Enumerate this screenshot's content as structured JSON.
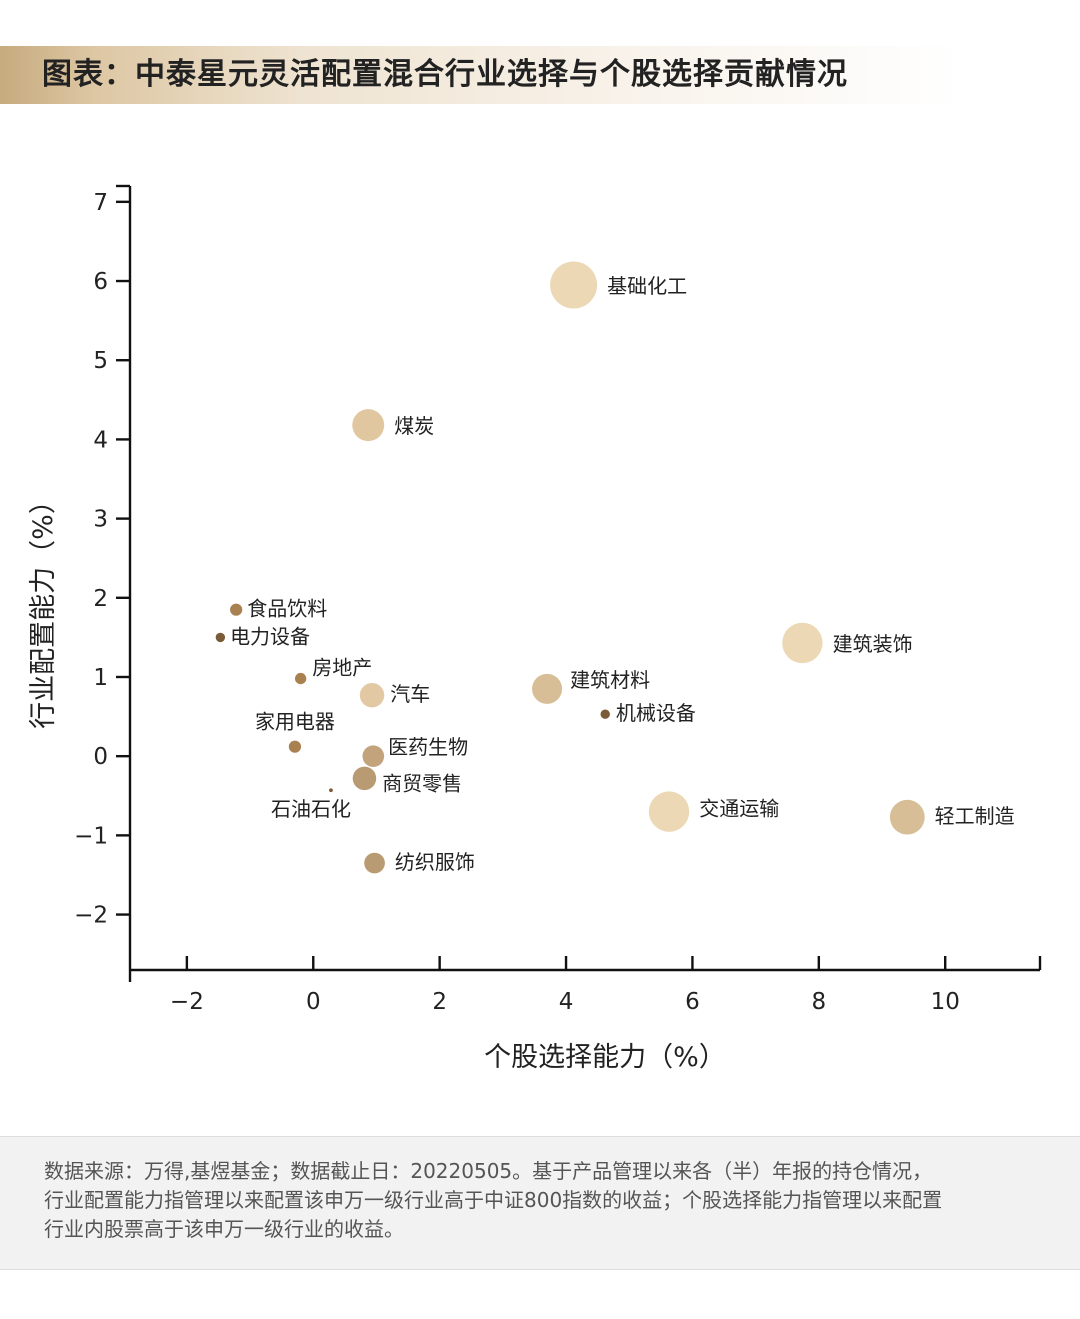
{
  "header": {
    "title": "图表：中泰星元灵活配置混合行业选择与个股选择贡献情况"
  },
  "chart_data": {
    "type": "scatter",
    "title": "图表：中泰星元灵活配置混合行业选择与个股选择贡献情况",
    "xlabel": "个股选择能力（%）",
    "ylabel": "行业配置能力（%）",
    "xlim": [
      -2.9,
      11.5
    ],
    "ylim": [
      -2.7,
      7.2
    ],
    "xticks": [
      -2,
      0,
      2,
      4,
      6,
      8,
      10
    ],
    "xtick_labels": [
      "−2",
      "0",
      "2",
      "4",
      "6",
      "8",
      "10"
    ],
    "yticks": [
      -2,
      -1,
      0,
      1,
      2,
      3,
      4,
      5,
      6,
      7
    ],
    "ytick_labels": [
      "−2",
      "−1",
      "0",
      "1",
      "2",
      "3",
      "4",
      "5",
      "6",
      "7"
    ],
    "grid": false,
    "points": [
      {
        "label": "基础化工",
        "x": 4.12,
        "y": 5.95,
        "size": 5,
        "color": "#ecd8b4"
      },
      {
        "label": "煤炭",
        "x": 0.87,
        "y": 4.18,
        "size": 3.4,
        "color": "#e1c79f"
      },
      {
        "label": "食品饮料",
        "x": -1.22,
        "y": 1.85,
        "size": 1.3,
        "color": "#a9804f"
      },
      {
        "label": "电力设备",
        "x": -1.47,
        "y": 1.5,
        "size": 1.0,
        "color": "#7b5a38"
      },
      {
        "label": "房地产",
        "x": -0.2,
        "y": 0.98,
        "size": 1.2,
        "color": "#a9804f"
      },
      {
        "label": "汽车",
        "x": 0.93,
        "y": 0.77,
        "size": 2.6,
        "color": "#e2c9a3"
      },
      {
        "label": "建筑材料",
        "x": 3.7,
        "y": 0.85,
        "size": 3.2,
        "color": "#d8be97"
      },
      {
        "label": "机械设备",
        "x": 4.62,
        "y": 0.53,
        "size": 1.0,
        "color": "#7b5a38"
      },
      {
        "label": "建筑装饰",
        "x": 7.74,
        "y": 1.43,
        "size": 4.3,
        "color": "#ecd8b4"
      },
      {
        "label": "家用电器",
        "x": -0.29,
        "y": 0.12,
        "size": 1.3,
        "color": "#a9804f"
      },
      {
        "label": "医药生物",
        "x": 0.95,
        "y": 0.0,
        "size": 2.3,
        "color": "#c2a37c"
      },
      {
        "label": "商贸零售",
        "x": 0.81,
        "y": -0.28,
        "size": 2.5,
        "color": "#b89a73"
      },
      {
        "label": "石油石化",
        "x": 0.28,
        "y": -0.43,
        "size": 0.4,
        "color": "#7b5a38"
      },
      {
        "label": "交通运输",
        "x": 5.63,
        "y": -0.7,
        "size": 4.3,
        "color": "#ecd8b4"
      },
      {
        "label": "轻工制造",
        "x": 9.4,
        "y": -0.77,
        "size": 3.7,
        "color": "#d8be97"
      },
      {
        "label": "纺织服饰",
        "x": 0.97,
        "y": -1.35,
        "size": 2.2,
        "color": "#b89a73"
      }
    ]
  },
  "footer": {
    "note_lines": [
      "数据来源：万得,基煜基金；数据截止日：20220505。基于产品管理以来各（半）年报的持仓情况，",
      "行业配置能力指管理以来配置该申万一级行业高于中证800指数的收益；个股选择能力指管理以来配置",
      "行业内股票高于该申万一级行业的收益。"
    ]
  }
}
